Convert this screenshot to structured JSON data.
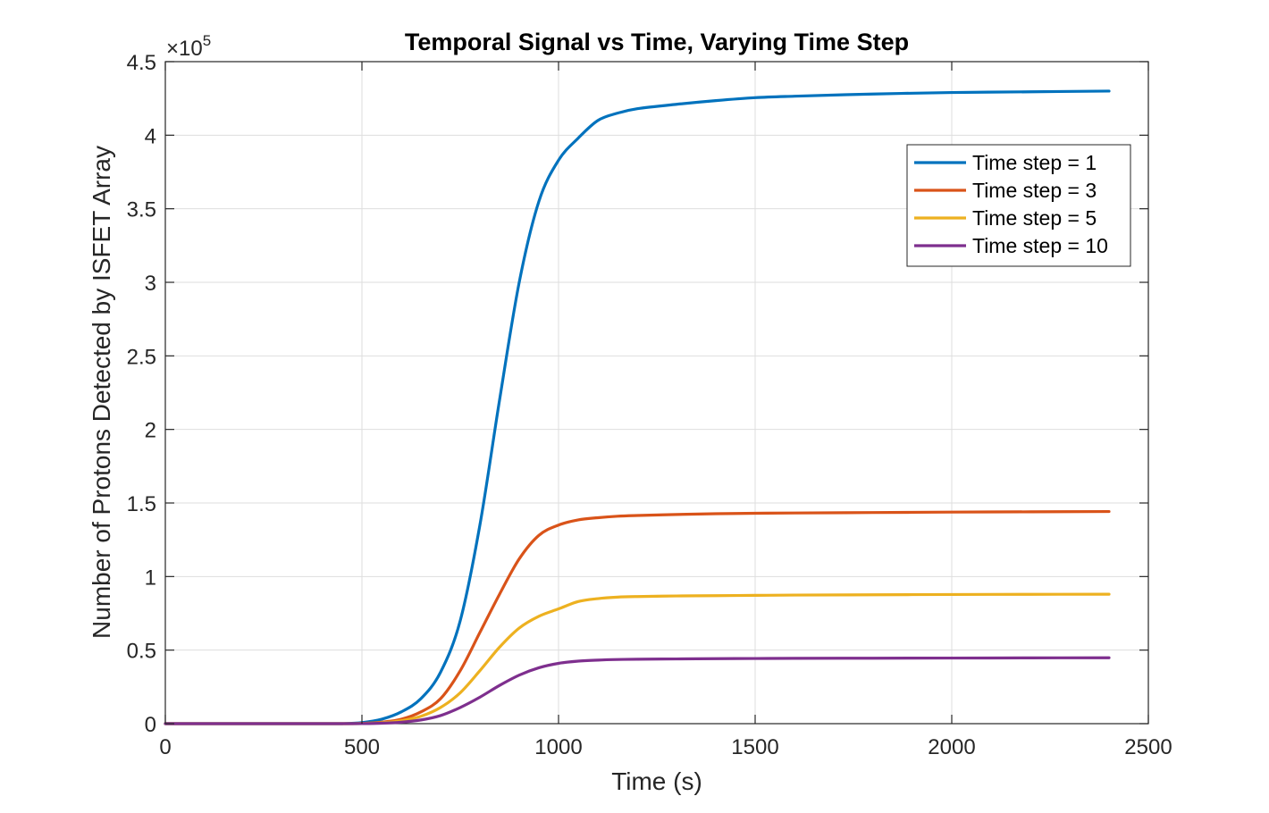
{
  "chart_data": {
    "type": "line",
    "title": "Temporal Signal vs Time, Varying Time Step",
    "xlabel": "Time (s)",
    "ylabel": "Number of Protons Detected by ISFET Array",
    "xlim": [
      0,
      2500
    ],
    "ylim": [
      0,
      450000
    ],
    "xticks": [
      0,
      500,
      1000,
      1500,
      2000,
      2500
    ],
    "xtick_labels": [
      "0",
      "500",
      "1000",
      "1500",
      "2000",
      "2500"
    ],
    "yticks": [
      0,
      50000,
      100000,
      150000,
      200000,
      250000,
      300000,
      350000,
      400000,
      450000
    ],
    "ytick_labels": [
      "0",
      "0.5",
      "1",
      "1.5",
      "2",
      "2.5",
      "3",
      "3.5",
      "4",
      "4.5"
    ],
    "y_multiplier": {
      "base": "×10",
      "exponent": "5"
    },
    "grid": true,
    "legend_position": "top-right",
    "x": [
      0,
      100,
      200,
      300,
      400,
      450,
      500,
      550,
      600,
      650,
      700,
      750,
      800,
      850,
      900,
      950,
      1000,
      1050,
      1100,
      1150,
      1200,
      1300,
      1400,
      1500,
      1600,
      1800,
      2000,
      2200,
      2400
    ],
    "series": [
      {
        "name": "Time step = 1",
        "color": "#0072BD",
        "values": [
          0,
          0,
          0,
          0,
          0,
          0,
          700,
          3000,
          8000,
          17000,
          35000,
          70000,
          135000,
          220000,
          300000,
          355000,
          383000,
          398000,
          410000,
          415000,
          418000,
          421000,
          423500,
          425500,
          426500,
          428000,
          429000,
          429500,
          430000
        ]
      },
      {
        "name": "Time step = 3",
        "color": "#D95319",
        "values": [
          0,
          0,
          0,
          0,
          0,
          0,
          200,
          1000,
          3000,
          8000,
          17000,
          36000,
          62000,
          88000,
          112000,
          128000,
          135000,
          138500,
          140000,
          141000,
          141500,
          142200,
          142700,
          143000,
          143200,
          143500,
          143800,
          144000,
          144200
        ]
      },
      {
        "name": "Time step = 5",
        "color": "#EDB120",
        "values": [
          0,
          0,
          0,
          0,
          0,
          0,
          100,
          600,
          2000,
          5000,
          11000,
          21000,
          36000,
          52000,
          65000,
          73000,
          78000,
          83000,
          85000,
          86000,
          86400,
          86800,
          87000,
          87200,
          87400,
          87600,
          87800,
          87900,
          88000
        ]
      },
      {
        "name": "Time step = 10",
        "color": "#7E2F8E",
        "values": [
          0,
          0,
          0,
          0,
          0,
          0,
          50,
          300,
          1000,
          2500,
          5500,
          11000,
          18000,
          26000,
          33000,
          38000,
          41000,
          42500,
          43200,
          43600,
          43800,
          44000,
          44200,
          44300,
          44400,
          44500,
          44600,
          44700,
          44800
        ]
      }
    ]
  }
}
